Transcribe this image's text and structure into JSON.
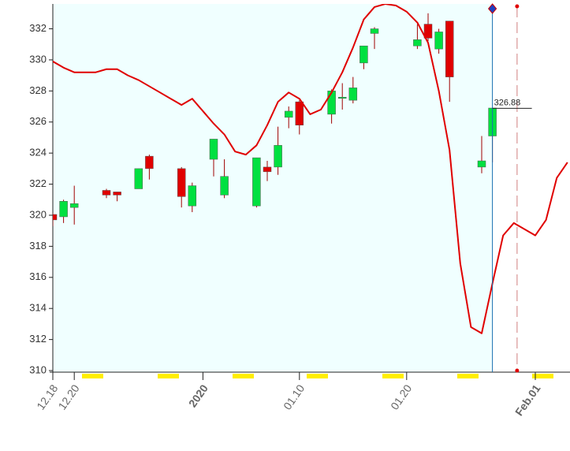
{
  "chart_data": {
    "type": "candlestick",
    "categories": [
      "12.18",
      null,
      "12.20",
      null,
      null,
      null,
      null,
      null,
      null,
      null,
      null,
      null,
      null,
      null,
      "2020",
      null,
      null,
      null,
      null,
      null,
      null,
      null,
      null,
      "01.10",
      null,
      null,
      null,
      null,
      null,
      null,
      null,
      null,
      null,
      "01.20",
      null,
      null,
      null,
      null,
      null,
      null,
      null,
      null,
      null,
      null,
      null,
      "Feb.01",
      null,
      null,
      null,
      null
    ],
    "major_categories": [
      14,
      45
    ],
    "major_label_color": "#800000",
    "label_color": "#666666",
    "open": [
      320.05,
      319.9,
      320.5,
      null,
      null,
      321.6,
      321.5,
      null,
      321.7,
      323.8,
      null,
      null,
      323.0,
      320.6,
      null,
      323.6,
      321.3,
      null,
      null,
      320.6,
      323.1,
      323.1,
      326.3,
      327.3,
      null,
      null,
      326.5,
      327.55,
      327.4,
      329.8,
      331.7,
      null,
      null,
      null,
      330.9,
      332.3,
      330.7,
      332.5,
      null,
      null,
      323.1,
      325.1,
      null,
      null,
      null,
      null,
      null,
      null,
      null,
      null
    ],
    "high": [
      320.15,
      321.0,
      321.9,
      null,
      null,
      321.7,
      321.5,
      null,
      323.0,
      323.9,
      null,
      null,
      323.1,
      322.1,
      null,
      324.9,
      323.6,
      null,
      null,
      323.7,
      323.5,
      325.7,
      327.0,
      327.4,
      null,
      null,
      328.1,
      328.5,
      328.9,
      330.9,
      332.1,
      null,
      null,
      null,
      332.3,
      333.0,
      332.0,
      332.5,
      null,
      null,
      325.1,
      326.9,
      null,
      null,
      null,
      null,
      null,
      null,
      null,
      null
    ],
    "low": [
      319.3,
      319.5,
      319.4,
      null,
      null,
      321.1,
      320.9,
      null,
      321.7,
      322.3,
      null,
      null,
      320.5,
      320.2,
      null,
      322.5,
      321.1,
      null,
      null,
      320.5,
      322.2,
      322.6,
      325.6,
      325.2,
      null,
      null,
      325.9,
      326.8,
      327.2,
      329.4,
      330.7,
      null,
      null,
      null,
      330.7,
      331.2,
      330.4,
      327.3,
      null,
      null,
      322.7,
      323.4,
      null,
      null,
      null,
      null,
      null,
      null,
      null,
      null
    ],
    "close": [
      319.7,
      320.9,
      320.75,
      null,
      null,
      321.3,
      321.3,
      null,
      323.0,
      323.0,
      null,
      null,
      321.2,
      321.9,
      null,
      324.9,
      322.5,
      null,
      null,
      323.7,
      322.8,
      324.5,
      326.7,
      325.8,
      null,
      null,
      328.0,
      327.6,
      328.2,
      330.9,
      332.0,
      null,
      null,
      null,
      331.3,
      331.4,
      331.8,
      328.9,
      null,
      null,
      323.5,
      326.9,
      null,
      null,
      null,
      null,
      null,
      null,
      null,
      null
    ],
    "up_color": "#00e040",
    "down_color": "#e00000",
    "overlay": {
      "color": "#e00000",
      "values": [
        329.9,
        329.5,
        329.2,
        329.2,
        329.2,
        329.4,
        329.4,
        329.0,
        328.7,
        328.3,
        327.9,
        327.5,
        327.1,
        327.5,
        326.7,
        325.9,
        325.2,
        324.1,
        323.9,
        324.5,
        325.8,
        327.3,
        327.9,
        327.5,
        326.5,
        326.8,
        327.9,
        329.2,
        330.8,
        332.6,
        333.4,
        333.6,
        333.5,
        333.1,
        332.4,
        331.1,
        328.0,
        324.2,
        316.9,
        312.8,
        312.4,
        315.6,
        318.7,
        319.5,
        319.1,
        318.7,
        319.7,
        322.4,
        323.4,
        null
      ]
    },
    "last_value": 326.88,
    "ylim": [
      309.9,
      333.6
    ],
    "yticks": [
      310,
      312,
      314,
      316,
      318,
      320,
      322,
      324,
      326,
      328,
      330,
      332
    ]
  }
}
